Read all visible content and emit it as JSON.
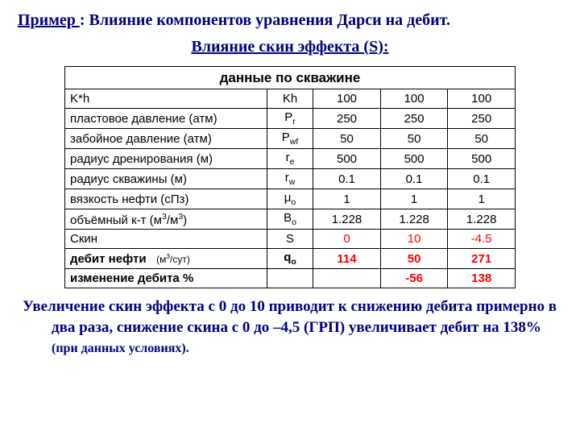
{
  "title": {
    "example_label": "Пример ",
    "rest": ": Влияние компонентов уравнения Дарси на дебит."
  },
  "subtitle": "Влияние скин эффекта (S):",
  "table": {
    "header": "данные по скважине",
    "rows": [
      {
        "label": "K*h",
        "symbol": "Kh",
        "vals": [
          "100",
          "100",
          "100"
        ],
        "color": "#000000",
        "bold": false
      },
      {
        "label": "пластовое давление (атм)",
        "symbol_html": "P<span class='sub'>r</span>",
        "vals": [
          "250",
          "250",
          "250"
        ],
        "color": "#000000",
        "bold": false
      },
      {
        "label": "забойное давление (атм)",
        "symbol_html": "P<span class='sub'>wf</span>",
        "vals": [
          "50",
          "50",
          "50"
        ],
        "color": "#000000",
        "bold": false
      },
      {
        "label": "радиус дренирования (м)",
        "symbol_html": "r<span class='sub'>e</span>",
        "vals": [
          "500",
          "500",
          "500"
        ],
        "color": "#000000",
        "bold": false
      },
      {
        "label": "радиус скважины (м)",
        "symbol_html": "r<span class='sub'>w</span>",
        "vals": [
          "0.1",
          "0.1",
          "0.1"
        ],
        "color": "#000000",
        "bold": false
      },
      {
        "label": "вязкость нефти (сПз)",
        "symbol_html": "μ<span class='sub'>o</span>",
        "vals": [
          "1",
          "1",
          "1"
        ],
        "color": "#000000",
        "bold": false
      },
      {
        "label_html": "объёмный к-т (м<span class='sup'>3</span>/м<span class='sup'>3</span>)",
        "symbol_html": "B<span class='sub'>o</span>",
        "vals": [
          "1.228",
          "1.228",
          "1.228"
        ],
        "color": "#000000",
        "bold": false
      },
      {
        "label": "Скин",
        "symbol": "S",
        "vals": [
          "0",
          "10",
          "-4.5"
        ],
        "color": "#ff0000",
        "bold": false
      },
      {
        "label_html": "<span class='bold-label'>дебит нефти</span>&nbsp;&nbsp;&nbsp;<span class='unit-small'>(м<span class='sup'>3</span>/сут)</span>",
        "symbol_html": "<b>q<span class='sub'>o</span></b>",
        "vals": [
          "114",
          "50",
          "271"
        ],
        "color": "#ff0000",
        "bold": true,
        "bold_row": true
      },
      {
        "label_html": "<span class='bold-label'>изменение дебита %</span>",
        "symbol": "",
        "vals": [
          "",
          "-56",
          "138"
        ],
        "color": "#ff0000",
        "bold": true,
        "bold_row": true
      }
    ]
  },
  "conclusion": {
    "main": "Увеличение скин эффекта с 0 до 10 приводит к снижению дебита примерно в два раза, снижение скина с 0 до –4,5 (ГРП) увеличивает дебит на 138% ",
    "tail": "(при данных условиях)."
  },
  "colors": {
    "title": "#00007d",
    "highlight": "#ff0000",
    "border": "#000000",
    "background": "#ffffff"
  }
}
